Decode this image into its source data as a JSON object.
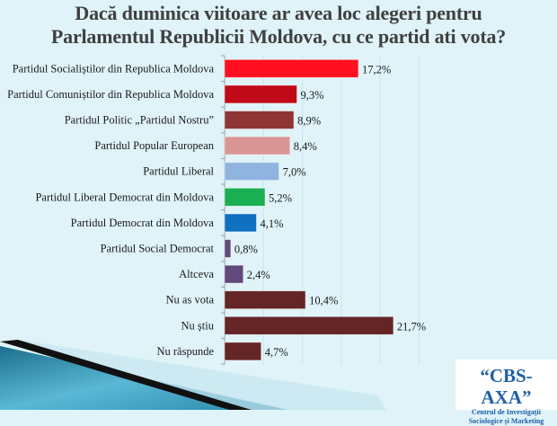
{
  "chart_data": {
    "type": "bar",
    "orientation": "horizontal",
    "title": "Dacă duminica viitoare ar avea loc alegeri pentru Parlamentul Republicii Moldova, cu ce partid ati vota?",
    "title_lines": [
      "Dacă duminica viitoare ar avea loc alegeri pentru",
      "Parlamentul Republicii Moldova, cu ce partid ati vota?"
    ],
    "categories": [
      "Partidul Socialiștilor din Republica Moldova",
      "Partidul Comuniștilor din Republica Moldova",
      "Partidul Politic „Partidul Nostru”",
      "Partidul Popular European",
      "Partidul Liberal",
      "Partidul Liberal Democrat din Moldova",
      "Partidul Democrat din Moldova",
      "Partidul Social Democrat",
      "Altceva",
      "Nu as vota",
      "Nu știu",
      "Nu răspunde"
    ],
    "values": [
      17.2,
      9.3,
      8.9,
      8.4,
      7.0,
      5.2,
      4.1,
      0.8,
      2.4,
      10.4,
      21.7,
      4.7
    ],
    "data_labels": [
      "17,2%",
      "9,3%",
      "8,9%",
      "8,4%",
      "7,0%",
      "5,2%",
      "4,1%",
      "0,8%",
      "2,4%",
      "10,4%",
      "21,7%",
      "4,7%"
    ],
    "colors": [
      "#ff0f1f",
      "#c00a18",
      "#8f3535",
      "#d99594",
      "#8fb4e0",
      "#1aaf52",
      "#1170c0",
      "#614a7b",
      "#614a7b",
      "#632525",
      "#632525",
      "#632525"
    ],
    "xlim": [
      0,
      25
    ],
    "grid": true,
    "xlabel": "",
    "ylabel": ""
  },
  "logo": {
    "name": "“CBS-AXA”",
    "line1": "Centrul de Investigații",
    "line2": "Sociologice și Marketing"
  }
}
